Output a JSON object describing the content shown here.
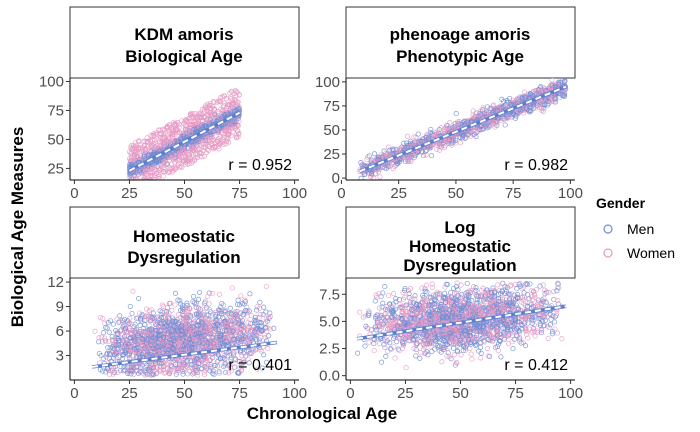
{
  "chart_data": {
    "type": "scatter",
    "ylabel": "Biological Age Measures",
    "xlabel": "Chronological Age",
    "legend": {
      "title": "Gender",
      "position": "right",
      "entries": [
        {
          "name": "Men",
          "color": "#6f8fd6"
        },
        {
          "name": "Women",
          "color": "#e79bc5"
        }
      ]
    },
    "fit_line_color": "#ffffff",
    "panels": [
      {
        "title_lines": [
          "KDM amoris",
          "Biological Age"
        ],
        "x_range": [
          25,
          75
        ],
        "xlim": [
          -2,
          102
        ],
        "x_ticks": [
          0,
          25,
          50,
          75,
          100
        ],
        "ylim": [
          15,
          103
        ],
        "y_ticks": [
          25,
          50,
          75,
          100
        ],
        "y_tick_labels": [
          "25",
          "50",
          "75",
          "100"
        ],
        "r_label": "r = 0.952",
        "fit": {
          "x": [
            25,
            75
          ],
          "y": [
            23,
            73
          ]
        },
        "band": {
          "women_slope": 1.0,
          "women_offset": 5,
          "women_spread": 18,
          "men_spread": 6
        },
        "n_points": 1800
      },
      {
        "title_lines": [
          "phenoage amoris",
          "Phenotypic Age"
        ],
        "x_range": [
          8,
          98
        ],
        "xlim": [
          2,
          102
        ],
        "x_ticks": [
          0,
          25,
          50,
          75,
          100
        ],
        "ylim": [
          -2,
          104
        ],
        "y_ticks": [
          0,
          25,
          50,
          75,
          100
        ],
        "y_tick_labels": [
          "0",
          "25",
          "50",
          "75",
          "100"
        ],
        "r_label": "r = 0.982",
        "fit": {
          "x": [
            8,
            98
          ],
          "y": [
            7,
            95
          ]
        },
        "band": {
          "women_slope": 1.0,
          "women_offset": 0,
          "women_spread": 7,
          "men_spread": 7
        },
        "n_points": 1500
      },
      {
        "title_lines": [
          "Homeostatic",
          "Dysregulation"
        ],
        "x_range": [
          8,
          92
        ],
        "xlim": [
          -2,
          102
        ],
        "x_ticks": [
          0,
          25,
          50,
          75,
          100
        ],
        "ylim": [
          0,
          12.5
        ],
        "y_ticks": [
          3,
          6,
          9,
          12
        ],
        "y_tick_labels": [
          "3",
          "6",
          "9",
          "12"
        ],
        "r_label": "r = 0.401",
        "fit": {
          "x": [
            8,
            92
          ],
          "y": [
            1.6,
            4.6
          ]
        },
        "band": {
          "women_slope": 0.04,
          "women_offset": 2.5,
          "women_spread": 3,
          "men_spread": 3
        },
        "n_points": 2000
      },
      {
        "title_lines": [
          "Log",
          "Homeostatic",
          "Dysregulation"
        ],
        "x_range": [
          3,
          98
        ],
        "xlim": [
          -2,
          102
        ],
        "x_ticks": [
          0,
          25,
          50,
          75,
          100
        ],
        "ylim": [
          -0.4,
          9.0
        ],
        "y_ticks": [
          0.0,
          2.5,
          5.0,
          7.5
        ],
        "y_tick_labels": [
          "0.0",
          "2.5",
          "5.0",
          "7.5"
        ],
        "r_label": "r = 0.412",
        "fit": {
          "x": [
            3,
            98
          ],
          "y": [
            3.4,
            6.4
          ]
        },
        "band": {
          "women_slope": 0.035,
          "women_offset": 4.6,
          "women_spread": 1.4,
          "men_spread": 1.4
        },
        "n_points": 2000
      }
    ]
  }
}
